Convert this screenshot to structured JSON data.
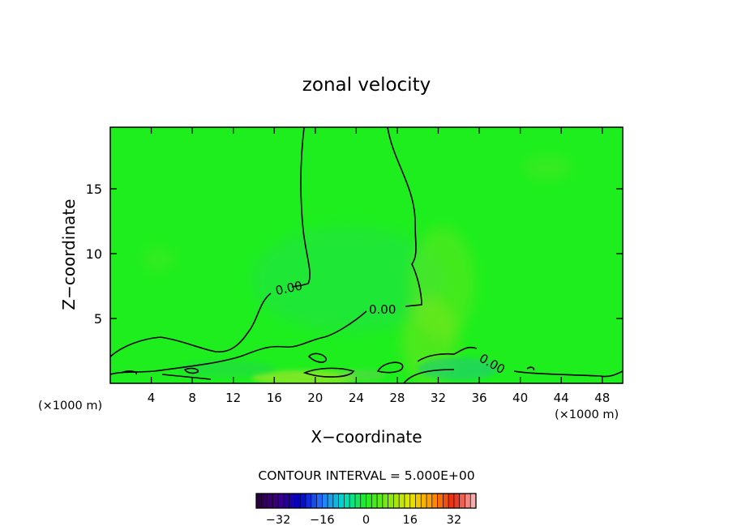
{
  "chart_data": {
    "type": "heatmap",
    "title": "zonal velocity",
    "xlabel": "X−coordinate",
    "ylabel": "Z−coordinate",
    "x_units": "(×1000 m)",
    "xlim": [
      0,
      50
    ],
    "ylim": [
      0,
      19.75
    ],
    "x_ticks": [
      4,
      8,
      12,
      16,
      20,
      24,
      28,
      32,
      36,
      40,
      44,
      48
    ],
    "y_ticks": [
      5,
      10,
      15
    ],
    "contour_interval_label": "CONTOUR INTERVAL = 5.000E+00",
    "contour_labels": [
      "0.00",
      "0.00",
      "0.00"
    ],
    "colorbar": {
      "min": -40,
      "max": 40,
      "ticks": [
        -32,
        -16,
        0,
        16,
        32
      ],
      "tick_labels": [
        "−32",
        "−16",
        "0",
        "16",
        "32"
      ]
    },
    "colors": {
      "background_field": "#1eee1e",
      "contour_line": "#000000"
    }
  }
}
